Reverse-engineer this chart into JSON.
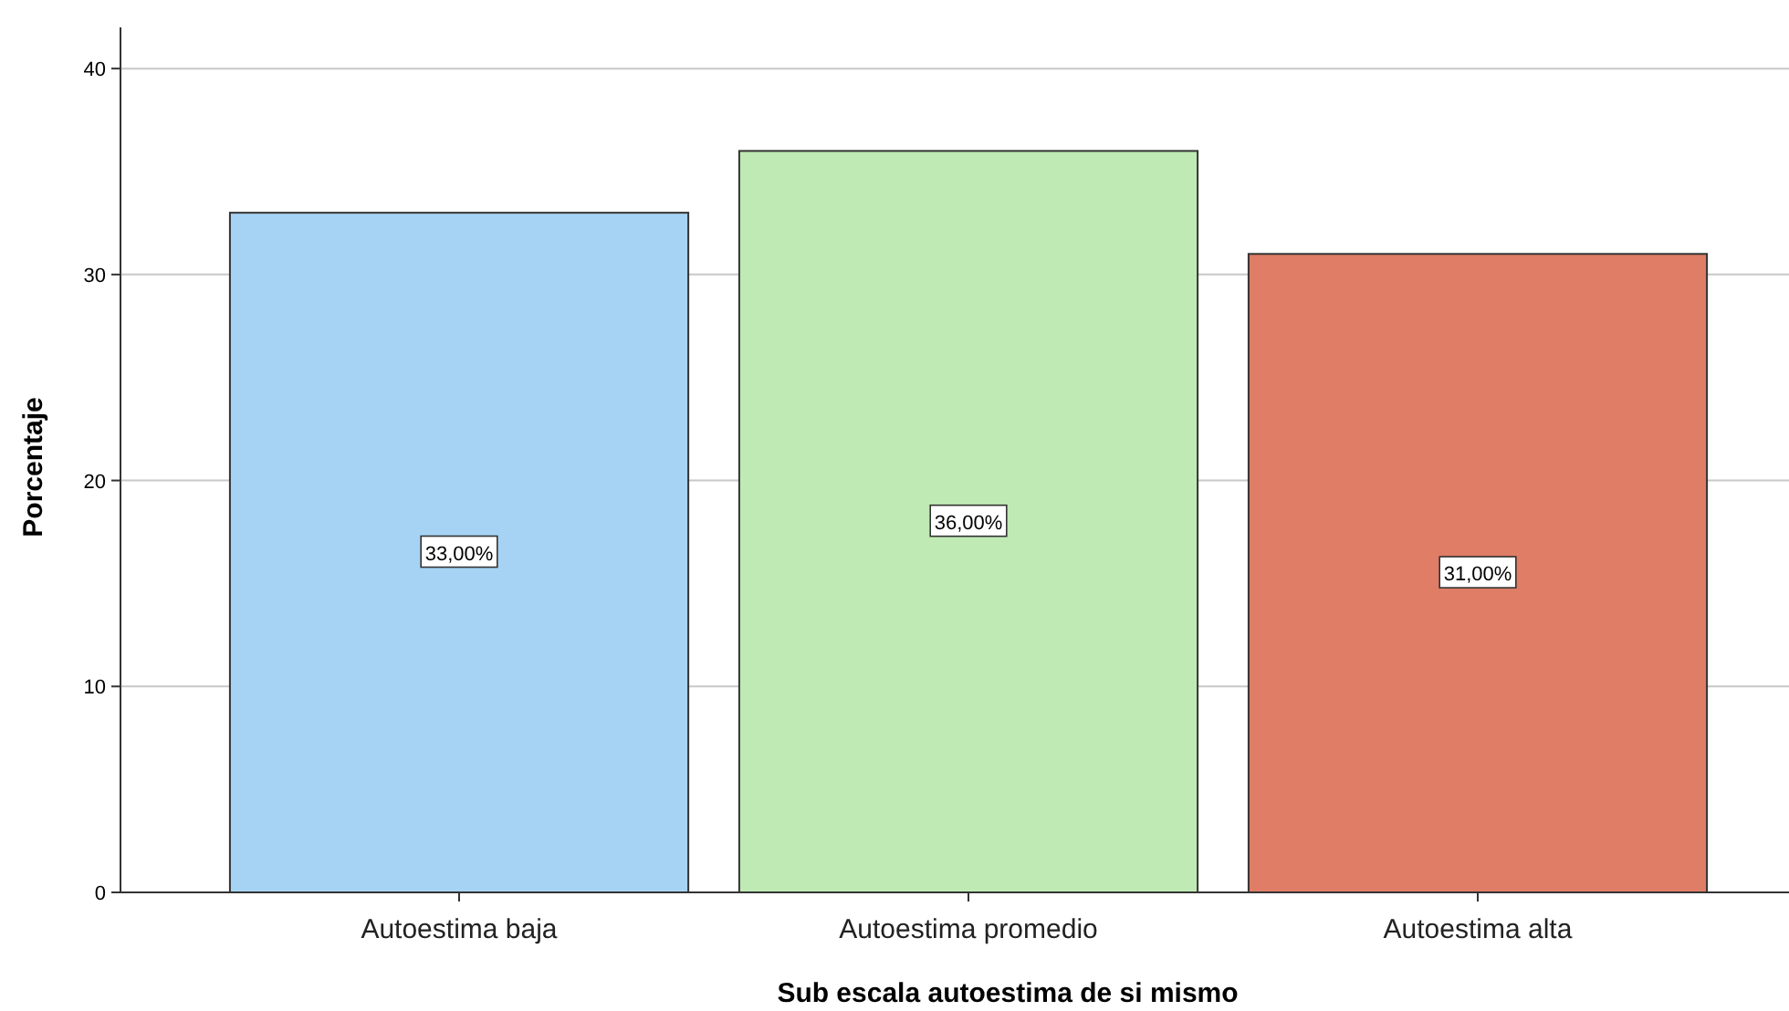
{
  "chart_data": {
    "type": "bar",
    "xlabel": "Sub escala autoestima de si mismo",
    "ylabel": "Porcentaje",
    "categories": [
      "Autoestima baja",
      "Autoestima promedio",
      "Autoestima alta"
    ],
    "values": [
      33,
      36,
      31
    ],
    "colors": [
      "#a6d3f3",
      "#bfeab4",
      "#df7d66"
    ],
    "value_labels": [
      "33,00%",
      "36,00%",
      "31,00%"
    ],
    "ylim": [
      0,
      42
    ],
    "yticks": [
      0,
      10,
      20,
      30,
      40
    ],
    "grid": "y"
  }
}
